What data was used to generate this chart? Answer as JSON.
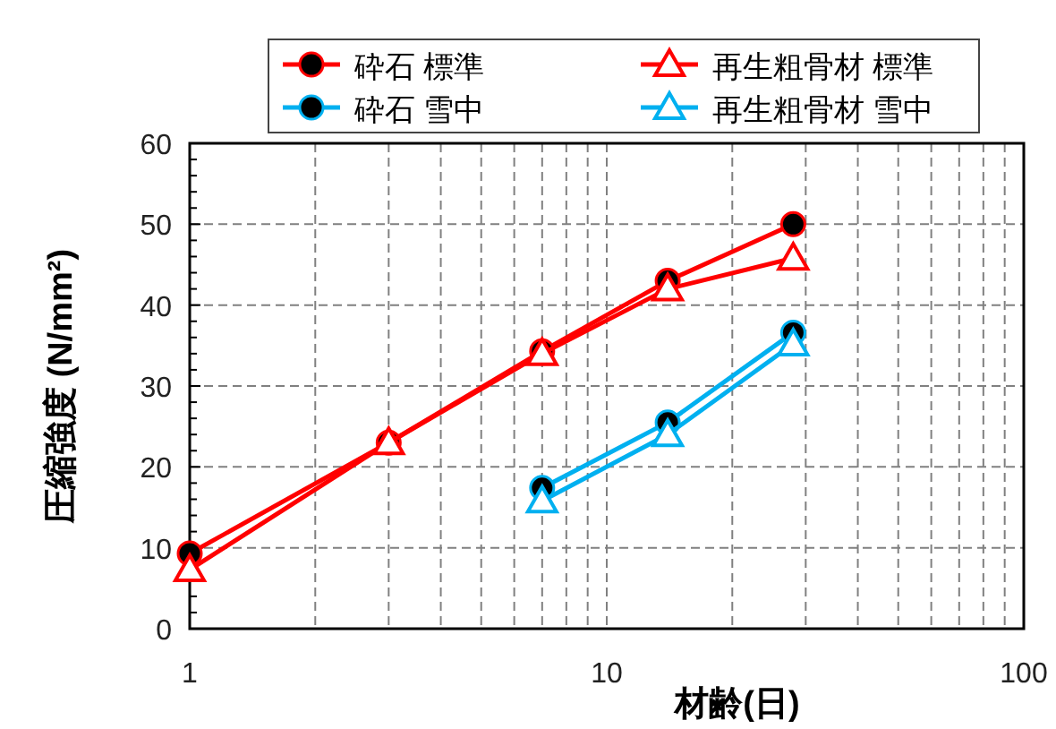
{
  "chart_data": {
    "type": "line",
    "xlabel": "材齢(日)",
    "ylabel": "圧縮強度 (N/mm²)",
    "log": "x",
    "xlim": [
      1,
      100
    ],
    "xticks": [
      1,
      10,
      100
    ],
    "ylim": [
      0,
      60
    ],
    "yticks": [
      0,
      10,
      20,
      30,
      40,
      50,
      60
    ],
    "grid": true,
    "legend": "top",
    "line_style": "solid",
    "series": [
      {
        "name": "砕石 標準",
        "color": "#ff0000",
        "marker": "circle",
        "x": [
          1,
          3,
          7,
          14,
          28
        ],
        "values": [
          9.3,
          23,
          34.3,
          43,
          50
        ]
      },
      {
        "name": "再生粗骨材 標準",
        "color": "#ff0000",
        "marker": "triangle",
        "x": [
          1,
          3,
          7,
          14,
          28
        ],
        "values": [
          7.3,
          23,
          34,
          42,
          45.8
        ]
      },
      {
        "name": "砕石 雪中",
        "color": "#00b0f0",
        "marker": "circle",
        "x": [
          7,
          14,
          28
        ],
        "values": [
          17.4,
          25.5,
          36.6
        ]
      },
      {
        "name": "再生粗骨材 雪中",
        "color": "#00b0f0",
        "marker": "triangle",
        "x": [
          7,
          14,
          28
        ],
        "values": [
          15.8,
          24,
          35.2
        ]
      }
    ]
  }
}
